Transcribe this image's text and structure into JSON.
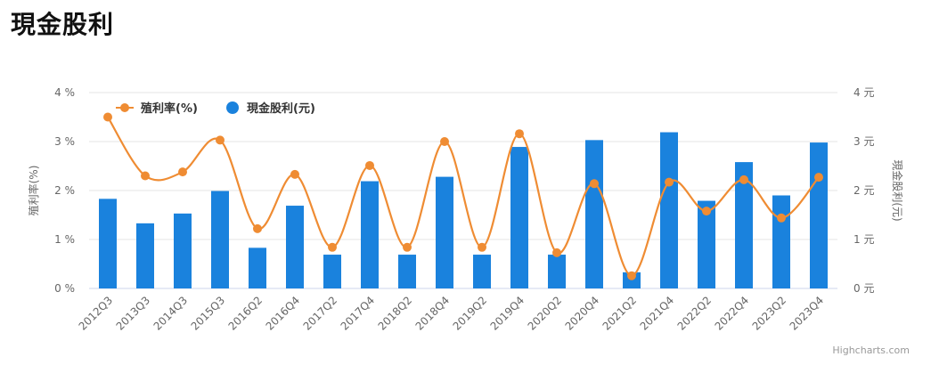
{
  "page": {
    "title": "現金股利"
  },
  "chart_data": {
    "type": "bar",
    "categories": [
      "2012Q3",
      "2013Q3",
      "2014Q3",
      "2015Q3",
      "2016Q2",
      "2016Q4",
      "2017Q2",
      "2017Q4",
      "2018Q2",
      "2018Q4",
      "2019Q2",
      "2019Q4",
      "2020Q2",
      "2020Q4",
      "2021Q2",
      "2021Q4",
      "2022Q2",
      "2022Q4",
      "2023Q2",
      "2023Q4"
    ],
    "series": [
      {
        "name": "現金股利(元)",
        "type": "bar",
        "axis": "right",
        "color": "#1a82dd",
        "values": [
          1.83,
          1.33,
          1.53,
          1.99,
          0.83,
          1.69,
          0.69,
          2.19,
          0.69,
          2.28,
          0.69,
          2.89,
          0.69,
          3.03,
          0.33,
          3.19,
          1.79,
          2.58,
          1.9,
          2.98
        ]
      },
      {
        "name": "殖利率(%)",
        "type": "spline",
        "axis": "left",
        "color": "#ef8c33",
        "values": [
          3.5,
          2.3,
          2.38,
          3.03,
          1.22,
          2.33,
          0.84,
          2.51,
          0.84,
          3.0,
          0.84,
          3.16,
          0.73,
          2.14,
          0.26,
          2.17,
          1.58,
          2.22,
          1.44,
          2.27
        ]
      }
    ],
    "y_left": {
      "label": "殖利率(%)",
      "min": 0,
      "max": 4,
      "ticks": [
        "0 %",
        "1 %",
        "2 %",
        "3 %",
        "4 %"
      ]
    },
    "y_right": {
      "label": "現金股利(元)",
      "min": 0,
      "max": 4,
      "ticks": [
        "0 元",
        "1 元",
        "2 元",
        "3 元",
        "4 元"
      ]
    },
    "grid": true,
    "legend": {
      "position": "top-left",
      "items": [
        "殖利率(%)",
        "現金股利(元)"
      ]
    },
    "credits": "Highcharts.com"
  }
}
